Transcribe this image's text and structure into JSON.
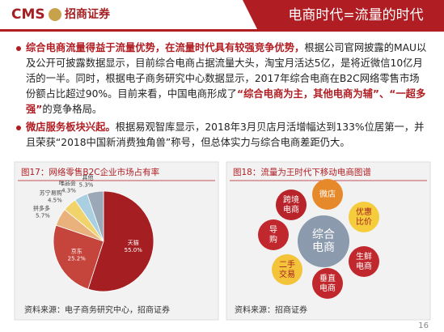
{
  "header": {
    "logo": "CMS",
    "company": "招商证券",
    "title": "电商时代=流量的时代"
  },
  "paragraphs": [
    {
      "runs": [
        {
          "text": "综合电商流量得益于流量优势，在流量时代具有较强竞争优势，",
          "em": true
        },
        {
          "text": "根据公司官网披露的MAU以及公开可披露数据显示，目前综合电商占据流量大头，淘宝月活达5亿，是将近微信10亿月活的一半。同时，根据电子商务研究中心数据显示，2017年综合电商在B2C网络零售市场份额占比超过90%。目前来看，中国电商形成了"
        },
        {
          "text": "“综合电商为主，其他电商为辅”、“一超多强”",
          "em": true
        },
        {
          "text": "的竞争格局。"
        }
      ]
    },
    {
      "runs": [
        {
          "text": "微店服务板块兴起。",
          "em": true
        },
        {
          "text": "根据易观智库显示，2018年3月贝店月活增幅达到133%位居第一，并且荣获“2018中国新消费独角兽”称号，但总体实力与综合电商差距仍大。"
        }
      ]
    }
  ],
  "chart_data": {
    "type": "pie",
    "title": "图17：网络零售B2C企业市场占有率",
    "categories": [
      "天猫",
      "京东",
      "拼多多",
      "苏宁易购",
      "唯品会",
      "其他"
    ],
    "values": [
      55.0,
      25.2,
      5.7,
      4.5,
      4.3,
      5.3
    ],
    "value_labels": [
      "55.0%",
      "25.2%",
      "5.7%",
      "4.5%",
      "4.3%",
      "5.3%"
    ],
    "colors": [
      "#a51f22",
      "#c5443c",
      "#e9b27c",
      "#f0d36a",
      "#a9cfe0",
      "#9aa8b8"
    ],
    "source": "资料来源：电子商务研究中心，招商证券"
  },
  "diagram": {
    "title": "图18：流量为王时代下移动电商图谱",
    "center": {
      "lines": [
        "综合",
        "电商"
      ]
    },
    "nodes": [
      {
        "lines": [
          "跨境",
          "电商"
        ]
      },
      {
        "lines": [
          "微店"
        ]
      },
      {
        "lines": [
          "优惠",
          "比价"
        ]
      },
      {
        "lines": [
          "生鲜",
          "电商"
        ]
      },
      {
        "lines": [
          "垂直",
          "电商"
        ]
      },
      {
        "lines": [
          "二手",
          "交易"
        ]
      },
      {
        "lines": [
          "导",
          "购"
        ]
      }
    ],
    "source": "资料来源：招商证券"
  },
  "page_number": "16"
}
